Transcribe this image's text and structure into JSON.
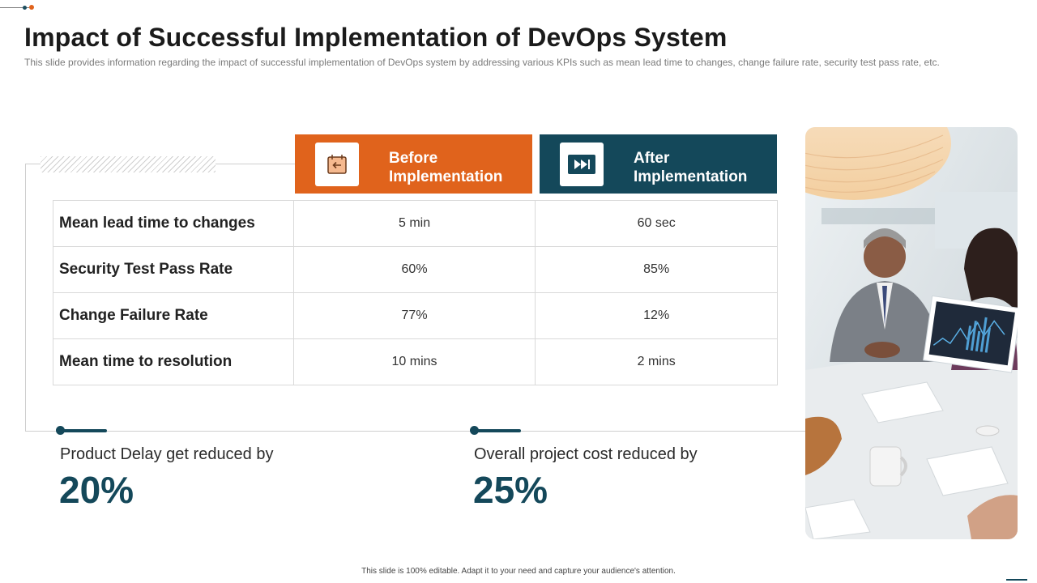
{
  "header": {
    "title": "Impact of Successful Implementation of DevOps System",
    "subtitle": "This slide provides information regarding the impact of successful implementation of DevOps system by addressing various KPIs such as mean lead time to changes, change failure rate, security test pass rate, etc."
  },
  "columns": {
    "before": {
      "line1": "Before",
      "line2": "Implementation",
      "icon": "calendar-back-icon",
      "color": "#e0631c"
    },
    "after": {
      "line1": "After",
      "line2": "Implementation",
      "icon": "fast-forward-icon",
      "color": "#14485a"
    }
  },
  "table": {
    "rows": [
      {
        "metric": "Mean lead time to changes",
        "before": "5 min",
        "after": "60 sec"
      },
      {
        "metric": "Security Test Pass Rate",
        "before": "60%",
        "after": "85%"
      },
      {
        "metric": "Change Failure Rate",
        "before": "77%",
        "after": "12%"
      },
      {
        "metric": "Mean time to resolution",
        "before": "10 mins",
        "after": "2 mins"
      }
    ]
  },
  "stats": [
    {
      "label": "Product Delay get reduced by",
      "value": "20%"
    },
    {
      "label": "Overall project cost reduced by",
      "value": "25%"
    }
  ],
  "footer": {
    "note": "This slide is 100% editable. Adapt it to your need and capture your audience's attention."
  }
}
